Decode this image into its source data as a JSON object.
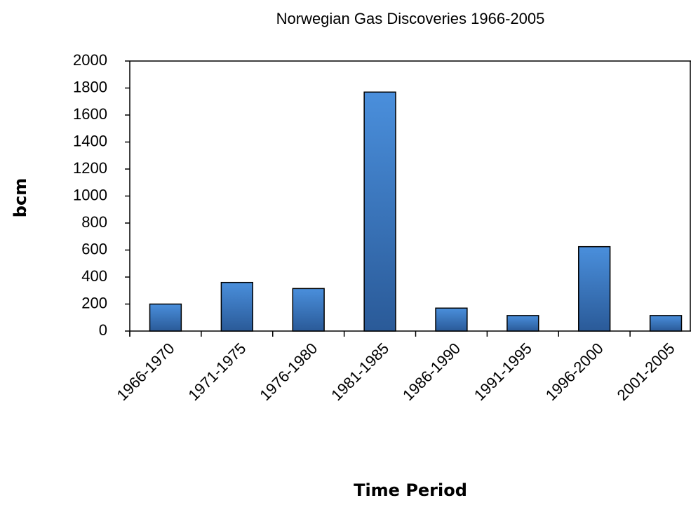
{
  "chart_data": {
    "type": "bar",
    "title": "Norwegian Gas Discoveries 1966-2005",
    "x_label": "Time Period",
    "y_label": "bcm",
    "categories": [
      "1966-1970",
      "1971-1975",
      "1976-1980",
      "1981-1985",
      "1986-1990",
      "1991-1995",
      "1996-2000",
      "2001-2005"
    ],
    "values": [
      200,
      360,
      315,
      1770,
      170,
      115,
      625,
      115
    ],
    "color": "#3a78c2",
    "ylim": [
      0,
      2000
    ],
    "yticks": [
      0,
      200,
      400,
      600,
      800,
      1000,
      1200,
      1400,
      1600,
      1800,
      2000
    ],
    "grid": false
  }
}
